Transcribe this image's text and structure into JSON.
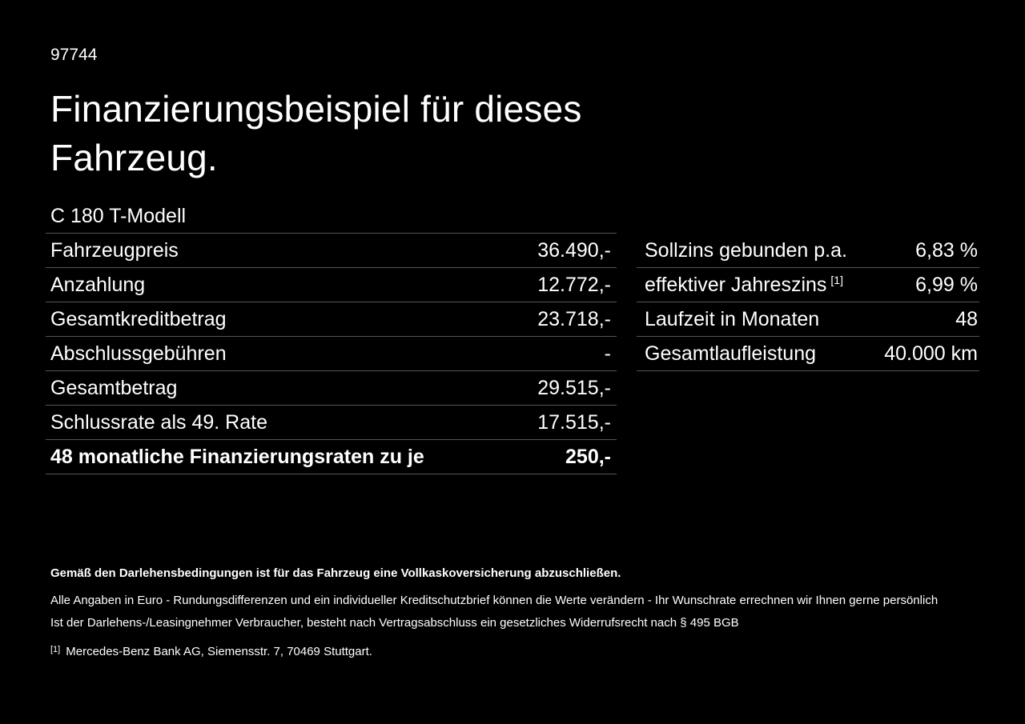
{
  "page": {
    "background_color": "#000000",
    "text_color": "#ffffff",
    "divider_color": "#565656"
  },
  "header": {
    "document_id": "97744",
    "title": "Finanzierungsbeispiel für dieses Fahrzeug."
  },
  "vehicle": {
    "model": "C 180 T-Modell"
  },
  "financing_table": {
    "rows": [
      {
        "label": "Fahrzeugpreis",
        "value": "36.490,-"
      },
      {
        "label": "Anzahlung",
        "value": "12.772,-"
      },
      {
        "label": "Gesamtkreditbetrag",
        "value": "23.718,-"
      },
      {
        "label": "Abschlussgebühren",
        "value": "-"
      },
      {
        "label": "Gesamtbetrag",
        "value": "29.515,-"
      },
      {
        "label": "Schlussrate als 49. Rate",
        "value": "17.515,-"
      },
      {
        "label": "48 monatliche Finanzierungsraten zu je",
        "value": "250,-"
      }
    ]
  },
  "conditions_table": {
    "rows": [
      {
        "label": "Sollzins gebunden p.a.",
        "value": "6,83 %"
      },
      {
        "label": "effektiver Jahreszins",
        "sup": "[1]",
        "value": "6,99 %"
      },
      {
        "label": "Laufzeit in Monaten",
        "value": "48"
      },
      {
        "label": "Gesamtlaufleistung",
        "value": "40.000 km"
      }
    ]
  },
  "footer": {
    "insurance_note": "Gemäß den Darlehensbedingungen ist für das Fahrzeug eine Vollkaskoversicherung abzuschließen.",
    "disclaimer_line1": "Alle Angaben in Euro - Rundungsdifferenzen und ein individueller Kreditschutzbrief können die Werte verändern - Ihr Wunschrate errechnen wir Ihnen gerne persönlich",
    "disclaimer_line2": "Ist der Darlehens-/Leasingnehmer Verbraucher, besteht nach Vertragsabschluss ein gesetzliches Widerrufsrecht nach § 495 BGB",
    "footnote_marker": "[1]",
    "footnote_text": "Mercedes-Benz Bank AG, Siemensstr. 7, 70469 Stuttgart."
  }
}
